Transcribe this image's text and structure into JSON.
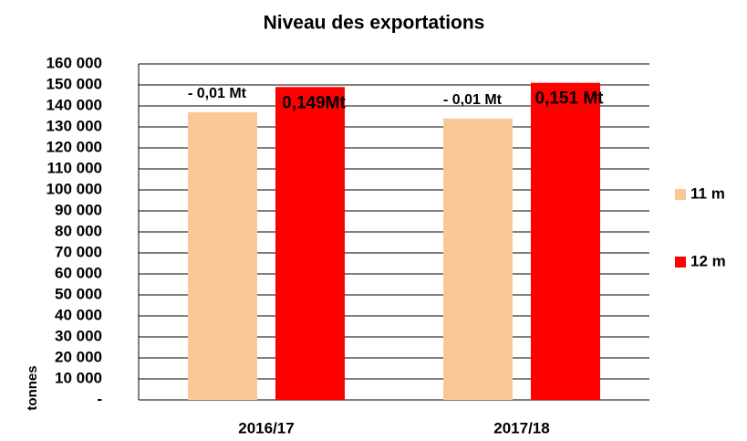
{
  "chart_data": {
    "type": "bar",
    "title": "Niveau des exportations",
    "y_label": "tonnes",
    "categories": [
      "2016/17",
      "2017/18"
    ],
    "series": [
      {
        "name": "11 m",
        "color": "#fac896",
        "values": [
          137000,
          134000
        ]
      },
      {
        "name": "12 m",
        "color": "#ff0000",
        "values": [
          149000,
          151000
        ],
        "value_labels": [
          "0,149Mt",
          "0,151 Mt"
        ]
      }
    ],
    "annotations": [
      "- 0,01 Mt",
      "- 0,01 Mt"
    ],
    "ylim": [
      0,
      160000
    ],
    "yticks": [
      {
        "value": 0,
        "label": "-"
      },
      {
        "value": 10000,
        "label": "10 000"
      },
      {
        "value": 20000,
        "label": "20 000"
      },
      {
        "value": 30000,
        "label": "30 000"
      },
      {
        "value": 40000,
        "label": "40 000"
      },
      {
        "value": 50000,
        "label": "50 000"
      },
      {
        "value": 60000,
        "label": "60 000"
      },
      {
        "value": 70000,
        "label": "70 000"
      },
      {
        "value": 80000,
        "label": "80 000"
      },
      {
        "value": 90000,
        "label": "90 000"
      },
      {
        "value": 100000,
        "label": "100 000"
      },
      {
        "value": 110000,
        "label": "110 000"
      },
      {
        "value": 120000,
        "label": "120 000"
      },
      {
        "value": 130000,
        "label": "130 000"
      },
      {
        "value": 140000,
        "label": "140 000"
      },
      {
        "value": 150000,
        "label": "150 000"
      },
      {
        "value": 160000,
        "label": "160 000"
      }
    ],
    "grid": true,
    "legend": "right"
  }
}
